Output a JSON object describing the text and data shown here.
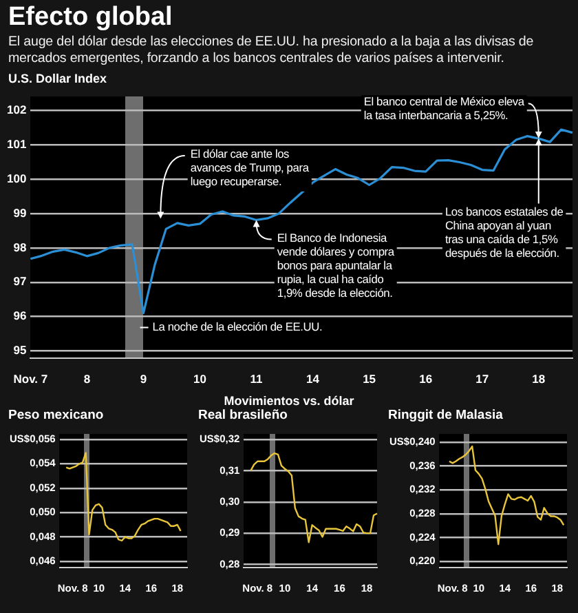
{
  "chart_data": [
    {
      "type": "line",
      "title": "Efecto global",
      "subtitle": "El auge del dólar desde las elecciones de EE.UU. ha presionado a la baja a las divisas de mercados emergentes, forzando a los bancos centrales de varios países a intervenir.",
      "ylabel": "U.S. Dollar Index",
      "grid": "y",
      "legend": false,
      "marker": "none",
      "line_style": "solid",
      "categories": [
        "Nov. 7",
        null,
        null,
        null,
        null,
        "8",
        null,
        null,
        null,
        null,
        "9",
        null,
        null,
        null,
        null,
        "10",
        null,
        null,
        null,
        null,
        "11",
        null,
        null,
        null,
        null,
        "14",
        null,
        null,
        null,
        null,
        "15",
        null,
        null,
        null,
        null,
        "16",
        null,
        null,
        null,
        null,
        "17",
        null,
        null,
        null,
        null,
        "18",
        null,
        null,
        null
      ],
      "ylim": [
        94.8,
        102.4
      ],
      "yticks": [
        95,
        96,
        97,
        98,
        99,
        100,
        101,
        102
      ],
      "annotations": [
        {
          "text": "El dólar cae ante los avances de Trump, para luego recuperarse.",
          "y": 98.85
        },
        {
          "text": "El Banco de Indonesia vende dólares y compra bonos para apuntalar la rupia, la cual ha caído 1,9% desde la elección.",
          "x": "11",
          "y": 98.81
        },
        {
          "text": "El banco central de México eleva la tasa interbancaria a 5,25%.",
          "x": "18",
          "y": 101.18
        },
        {
          "text": "Los bancos estatales de China apoyan al yuan tras una caída de 1,5% después de la elección.",
          "x": "18",
          "y": 101.18
        },
        "La noche de la elección de EE.UU."
      ],
      "series": [
        {
          "color": "#2b8fd6",
          "values": [
            97.68,
            97.77,
            97.89,
            97.95,
            97.87,
            97.76,
            97.85,
            98.0,
            98.07,
            98.1,
            96.1,
            97.5,
            98.55,
            98.72,
            98.65,
            98.7,
            98.97,
            99.06,
            98.94,
            98.91,
            98.81,
            98.86,
            99.0,
            99.31,
            99.6,
            99.9,
            100.1,
            100.29,
            100.13,
            100.03,
            99.83,
            100.03,
            100.35,
            100.33,
            100.24,
            100.22,
            100.54,
            100.55,
            100.49,
            100.41,
            100.27,
            100.25,
            100.86,
            101.14,
            101.25,
            101.18,
            101.08,
            101.44,
            101.35
          ]
        }
      ]
    },
    {
      "type": "line",
      "title": "Peso mexicano",
      "grid": "y",
      "legend": false,
      "marker": "none",
      "line_style": "solid",
      "annotations": [
        "Movimientos vs. dólar"
      ],
      "categories": [
        null,
        null,
        null,
        null,
        "Nov. 8",
        null,
        null,
        null,
        null,
        null,
        null,
        null,
        "10",
        null,
        null,
        null,
        null,
        null,
        null,
        null,
        "14",
        null,
        null,
        null,
        null,
        null,
        null,
        null,
        "16",
        null,
        null,
        null,
        null,
        null,
        null,
        null,
        "18",
        null,
        null,
        null
      ],
      "ylim": [
        0.0455,
        0.0565
      ],
      "yticks": [
        {
          "value": 0.046,
          "label": "0,046"
        },
        {
          "value": 0.048,
          "label": "0,048"
        },
        {
          "value": 0.05,
          "label": "0,050"
        },
        {
          "value": 0.052,
          "label": "0,052"
        },
        {
          "value": 0.054,
          "label": "0,054"
        },
        {
          "value": 0.056,
          "label": "US$0,056"
        }
      ],
      "series": [
        {
          "color": "#e8c53a",
          "values": [
            null,
            null,
            0.0537,
            0.0536,
            0.0537,
            0.0538,
            0.054,
            0.0541,
            0.0549,
            0.0482,
            0.0502,
            0.0506,
            0.0507,
            0.0504,
            0.049,
            0.0487,
            0.0486,
            0.0484,
            0.0478,
            0.0477,
            0.048,
            0.0479,
            0.0479,
            0.0481,
            0.0486,
            0.049,
            0.0491,
            0.0493,
            0.0494,
            0.0495,
            0.0495,
            0.0494,
            0.0493,
            0.0492,
            0.0489,
            0.0489,
            0.049,
            0.0485,
            null,
            null
          ]
        }
      ]
    },
    {
      "type": "line",
      "title": "Real brasileño",
      "grid": "y",
      "legend": false,
      "marker": "none",
      "line_style": "solid",
      "categories": [
        null,
        null,
        null,
        null,
        "Nov. 8",
        null,
        null,
        null,
        null,
        null,
        null,
        null,
        "10",
        null,
        null,
        null,
        null,
        null,
        null,
        null,
        "14",
        null,
        null,
        null,
        null,
        null,
        null,
        null,
        "16",
        null,
        null,
        null,
        null,
        null,
        null,
        null,
        "18",
        null,
        null,
        null
      ],
      "ylim": [
        0.279,
        0.322
      ],
      "yticks": [
        {
          "value": 0.28,
          "label": "0,28"
        },
        {
          "value": 0.29,
          "label": "0,29"
        },
        {
          "value": 0.3,
          "label": "0,30"
        },
        {
          "value": 0.31,
          "label": "0,31"
        },
        {
          "value": 0.32,
          "label": "US$0,32"
        }
      ],
      "series": [
        {
          "color": "#e8c53a",
          "values": [
            null,
            null,
            0.31,
            0.312,
            0.313,
            0.313,
            0.313,
            0.3137,
            0.3149,
            0.3156,
            0.3152,
            0.3116,
            0.3106,
            0.3098,
            0.3085,
            0.298,
            0.2954,
            0.2947,
            0.2943,
            0.2871,
            0.2926,
            0.2917,
            0.2909,
            0.2888,
            0.2914,
            0.2914,
            0.2914,
            0.2914,
            0.2911,
            0.2907,
            0.2922,
            0.2915,
            0.2906,
            0.2929,
            0.2922,
            0.2902,
            0.29,
            0.29,
            0.2957,
            0.2963
          ]
        }
      ]
    },
    {
      "type": "line",
      "title": "Ringgit de Malasia",
      "grid": "y",
      "legend": false,
      "marker": "none",
      "line_style": "solid",
      "categories": [
        null,
        null,
        null,
        null,
        "Nov. 8",
        null,
        null,
        null,
        null,
        null,
        null,
        null,
        "10",
        null,
        null,
        null,
        null,
        null,
        null,
        null,
        "14",
        null,
        null,
        null,
        null,
        null,
        null,
        null,
        "16",
        null,
        null,
        null,
        null,
        null,
        null,
        null,
        "18",
        null,
        null,
        null
      ],
      "ylim": [
        0.219,
        0.2415
      ],
      "yticks": [
        {
          "value": 0.22,
          "label": "0,220"
        },
        {
          "value": 0.224,
          "label": "0,224"
        },
        {
          "value": 0.228,
          "label": "0,228"
        },
        {
          "value": 0.232,
          "label": "0,232"
        },
        {
          "value": 0.236,
          "label": "0,236"
        },
        {
          "value": 0.24,
          "label": "US$0,240"
        }
      ],
      "series": [
        {
          "color": "#e8c53a",
          "values": [
            null,
            null,
            null,
            0.2368,
            0.2365,
            0.2368,
            0.2372,
            0.2375,
            0.2379,
            0.2385,
            0.2393,
            0.2353,
            0.2347,
            0.2339,
            0.2322,
            0.2301,
            0.2289,
            0.2277,
            0.2229,
            0.2277,
            0.2296,
            0.2313,
            0.2305,
            0.2304,
            0.2307,
            0.2308,
            0.2305,
            0.2302,
            0.231,
            0.23,
            0.2275,
            0.227,
            0.229,
            0.2281,
            0.2276,
            0.2276,
            0.2274,
            0.227,
            0.2261,
            null
          ]
        }
      ]
    }
  ]
}
